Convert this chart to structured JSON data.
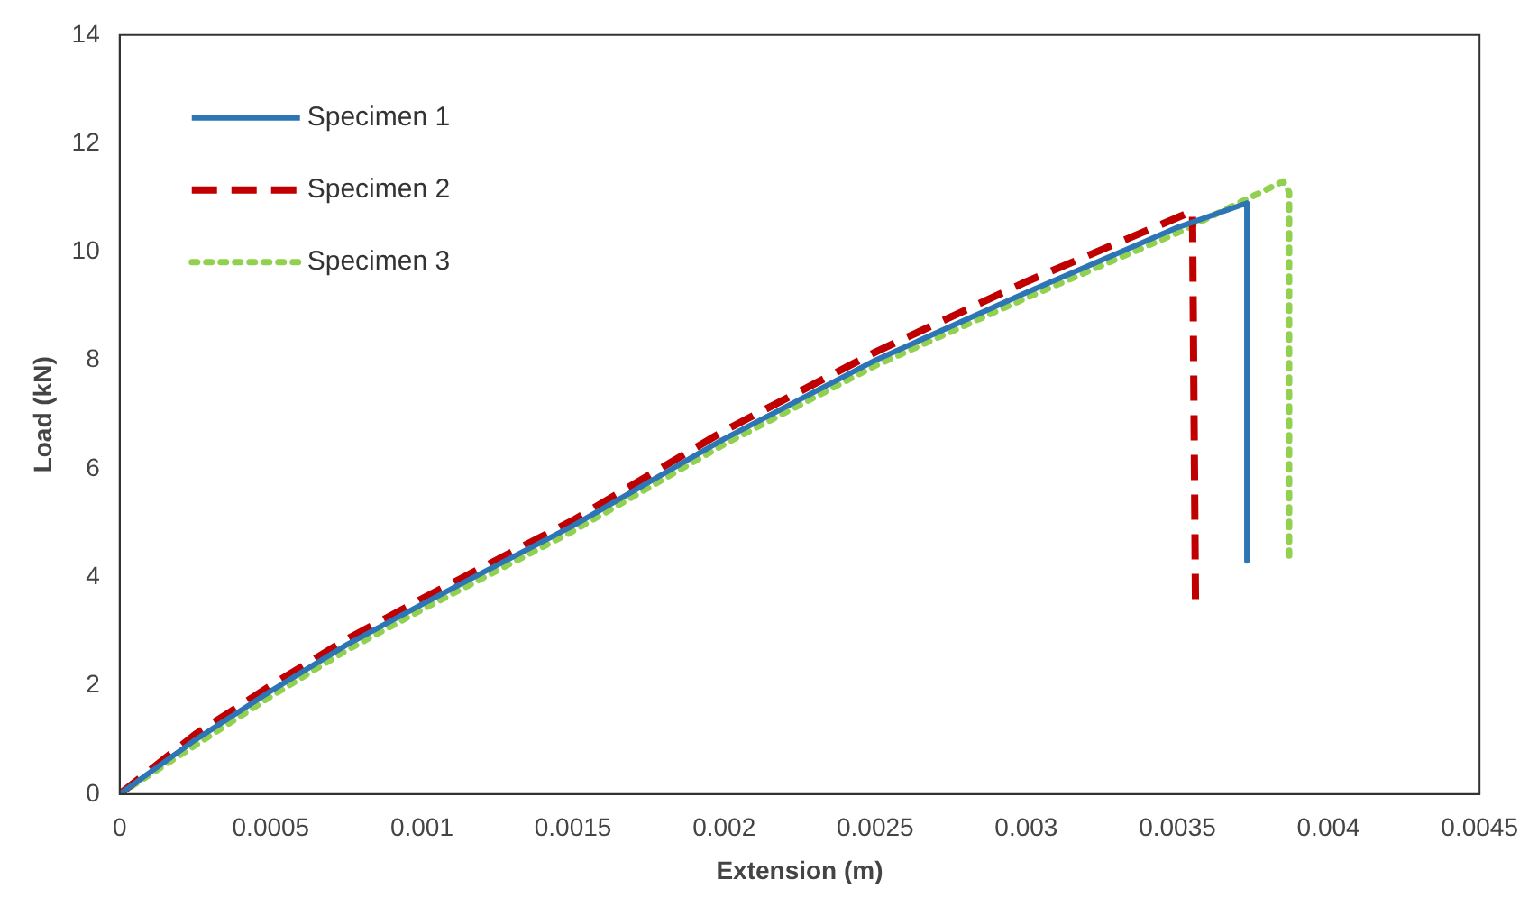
{
  "chart_data": {
    "type": "line",
    "xlabel": "Extension (m)",
    "ylabel": "Load (kN)",
    "xlim": [
      0,
      0.0045
    ],
    "xticks": [
      0,
      0.0005,
      0.001,
      0.0015,
      0.002,
      0.0025,
      0.003,
      0.0035,
      0.004,
      0.0045
    ],
    "ylim": [
      0,
      14
    ],
    "yticks": [
      0,
      2,
      4,
      6,
      8,
      10,
      12,
      14
    ],
    "grid": false,
    "legend": "top left",
    "marker": "none",
    "series": [
      {
        "name": "Specimen 1",
        "color": "#2e75b6",
        "line_style": "solid",
        "x": [
          0,
          0.00025,
          0.0005,
          0.00075,
          0.001,
          0.0015,
          0.002,
          0.0025,
          0.003,
          0.0035,
          0.00373,
          0.00373
        ],
        "values": [
          0,
          1.0,
          1.9,
          2.75,
          3.5,
          4.95,
          6.55,
          8.0,
          9.25,
          10.45,
          10.9,
          4.3
        ]
      },
      {
        "name": "Specimen 2",
        "color": "#c00000",
        "line_style": "dashed",
        "x": [
          0,
          0.00025,
          0.0005,
          0.00075,
          0.001,
          0.0015,
          0.002,
          0.0025,
          0.003,
          0.00355,
          0.00356
        ],
        "values": [
          0,
          1.1,
          2.0,
          2.85,
          3.6,
          5.05,
          6.7,
          8.15,
          9.45,
          10.75,
          3.5
        ]
      },
      {
        "name": "Specimen 3",
        "color": "#92d050",
        "line_style": "dotted",
        "x": [
          0,
          0.00025,
          0.0005,
          0.00075,
          0.001,
          0.0015,
          0.002,
          0.0025,
          0.003,
          0.0035,
          0.00385,
          0.00387,
          0.00387
        ],
        "values": [
          0,
          0.9,
          1.8,
          2.65,
          3.4,
          4.85,
          6.45,
          7.9,
          9.15,
          10.35,
          11.3,
          11.1,
          4.4
        ]
      }
    ]
  }
}
